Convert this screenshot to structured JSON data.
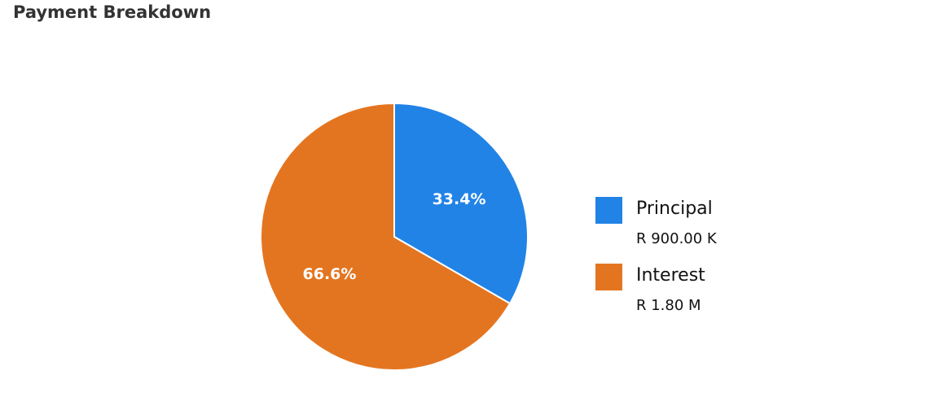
{
  "chart_data": {
    "type": "pie",
    "title": "Payment Breakdown",
    "legend_position": "right",
    "slices": [
      {
        "name": "Principal",
        "value_label": "R 900.00 K",
        "value": 900000,
        "percent_label": "33.4%",
        "color": "#2183e6"
      },
      {
        "name": "Interest",
        "value_label": "R 1.80 M",
        "value": 1800000,
        "percent_label": "66.6%",
        "color": "#e47520"
      }
    ]
  }
}
